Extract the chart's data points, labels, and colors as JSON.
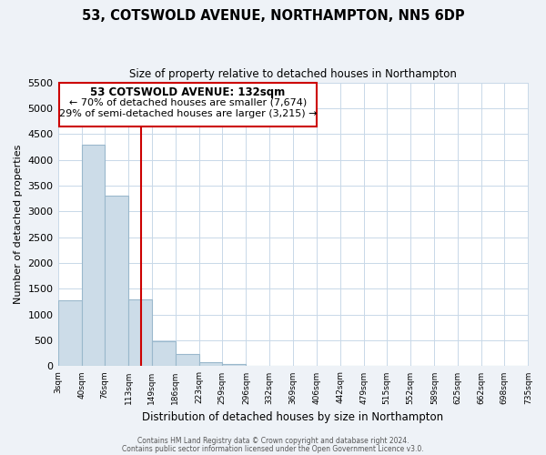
{
  "title": "53, COTSWOLD AVENUE, NORTHAMPTON, NN5 6DP",
  "subtitle": "Size of property relative to detached houses in Northampton",
  "xlabel": "Distribution of detached houses by size in Northampton",
  "ylabel": "Number of detached properties",
  "bar_edges": [
    3,
    40,
    76,
    113,
    149,
    186,
    223,
    259,
    296,
    332,
    369,
    406,
    442,
    479,
    515,
    552,
    589,
    625,
    662,
    698,
    735
  ],
  "bar_heights": [
    1270,
    4300,
    3300,
    1290,
    480,
    240,
    80,
    50,
    0,
    0,
    0,
    0,
    0,
    0,
    0,
    0,
    0,
    0,
    0,
    0
  ],
  "bar_color": "#ccdce8",
  "bar_edge_color": "#9ab8cc",
  "vline_x": 132,
  "vline_color": "#cc0000",
  "ylim": [
    0,
    5500
  ],
  "yticks": [
    0,
    500,
    1000,
    1500,
    2000,
    2500,
    3000,
    3500,
    4000,
    4500,
    5000,
    5500
  ],
  "annotation_title": "53 COTSWOLD AVENUE: 132sqm",
  "annotation_line1": "← 70% of detached houses are smaller (7,674)",
  "annotation_line2": "29% of semi-detached houses are larger (3,215) →",
  "annotation_box_color": "#ffffff",
  "annotation_box_edge": "#cc0000",
  "footer_line1": "Contains HM Land Registry data © Crown copyright and database right 2024.",
  "footer_line2": "Contains public sector information licensed under the Open Government Licence v3.0.",
  "bg_color": "#eef2f7",
  "plot_bg_color": "#ffffff",
  "grid_color": "#c8d8e8"
}
